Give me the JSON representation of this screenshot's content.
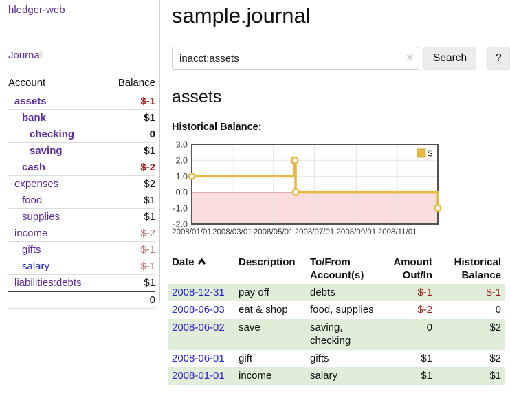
{
  "app": {
    "title": "hledger-web"
  },
  "sidebar": {
    "journal_link": "Journal",
    "headers": {
      "account": "Account",
      "balance": "Balance"
    },
    "accounts": [
      {
        "name": "assets",
        "balance": "$-1"
      },
      {
        "name": "bank",
        "balance": "$1"
      },
      {
        "name": "checking",
        "balance": "0"
      },
      {
        "name": "saving",
        "balance": "$1"
      },
      {
        "name": "cash",
        "balance": "$-2"
      },
      {
        "name": "expenses",
        "balance": "$2"
      },
      {
        "name": "food",
        "balance": "$1"
      },
      {
        "name": "supplies",
        "balance": "$1"
      },
      {
        "name": "income",
        "balance": "$-2"
      },
      {
        "name": "gifts",
        "balance": "$-1"
      },
      {
        "name": "salary",
        "balance": "$-1"
      },
      {
        "name": "liabilities:debts",
        "balance": "$1"
      }
    ],
    "total": "0"
  },
  "main": {
    "title": "sample.journal",
    "search": {
      "value": "inacct:assets",
      "clear_icon": "×",
      "button_label": "Search",
      "help_label": "?"
    },
    "account_heading": "assets"
  },
  "chart_data": {
    "type": "line",
    "step": true,
    "title": "Historical Balance:",
    "x_start": "2008-01-01",
    "x_end": "2008-12-31",
    "x_ticks": [
      "2008/01/01",
      "2008/03/01",
      "2008/05/01",
      "2008/07/01",
      "2008/09/01",
      "2008/11/01"
    ],
    "y_ticks": [
      "3.0",
      "2.0",
      "1.0",
      "0.0",
      "-1.0",
      "-2.0"
    ],
    "ylim": [
      -2,
      3
    ],
    "series": [
      {
        "name": "$",
        "color": "#e6ba41",
        "points": [
          [
            "2008-01-01",
            1
          ],
          [
            "2008-06-01",
            2
          ],
          [
            "2008-06-02",
            2
          ],
          [
            "2008-06-03",
            0
          ],
          [
            "2008-12-31",
            -1
          ]
        ]
      }
    ],
    "negative_fill": "#fbdcdc",
    "zero_line_color": "#8b1a1a",
    "grid": true,
    "legend_position": "top-right"
  },
  "register": {
    "headers": {
      "date": "Date",
      "description": "Description",
      "accounts": "To/From Account(s)",
      "amount": "Amount Out/In",
      "balance": "Historical Balance"
    },
    "sort_icon": "chevron-up",
    "rows": [
      {
        "date": "2008-12-31",
        "description": "pay off",
        "accounts": "debts",
        "amount": "$-1",
        "balance": "$-1"
      },
      {
        "date": "2008-06-03",
        "description": "eat & shop",
        "accounts": "food, supplies",
        "amount": "$-2",
        "balance": "0"
      },
      {
        "date": "2008-06-02",
        "description": "save",
        "accounts": "saving, checking",
        "amount": "0",
        "balance": "$2"
      },
      {
        "date": "2008-06-01",
        "description": "gift",
        "accounts": "gifts",
        "amount": "$1",
        "balance": "$2"
      },
      {
        "date": "2008-01-01",
        "description": "income",
        "accounts": "salary",
        "amount": "$1",
        "balance": "$1"
      }
    ]
  }
}
